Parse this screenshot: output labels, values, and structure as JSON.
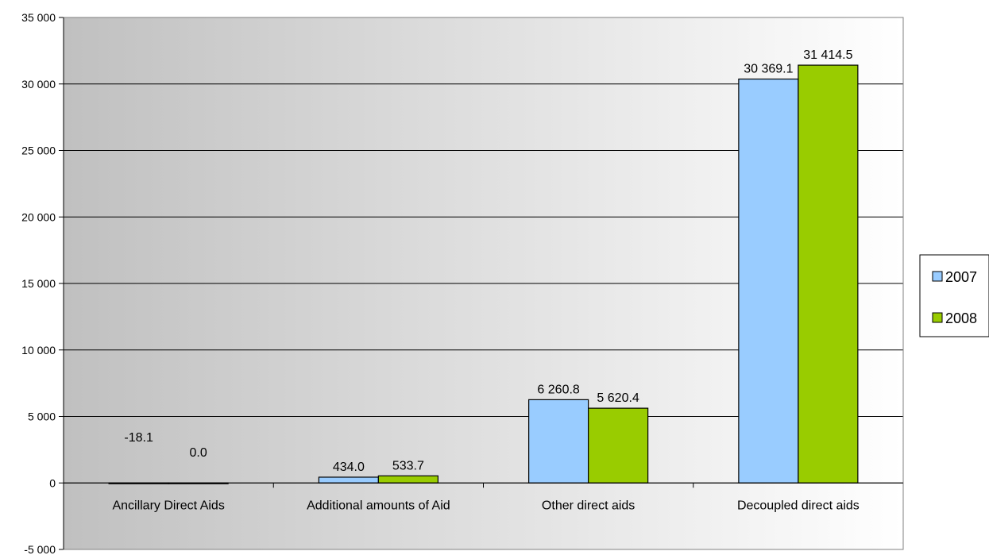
{
  "chart_data": {
    "type": "bar",
    "categories": [
      "Ancillary Direct Aids",
      "Additional amounts of Aid",
      "Other direct aids",
      "Decoupled direct aids"
    ],
    "series": [
      {
        "name": "2007",
        "values": [
          -18.1,
          434.0,
          6260.8,
          30369.1
        ],
        "labels": [
          "-18.1",
          "434.0",
          "6 260.8",
          "30 369.1"
        ]
      },
      {
        "name": "2008",
        "values": [
          0.0,
          533.7,
          5620.4,
          31414.5
        ],
        "labels": [
          "0.0",
          "533.7",
          "5 620.4",
          "31 414.5"
        ]
      }
    ],
    "ylim": [
      -5000,
      35000
    ],
    "yticks": [
      -5000,
      0,
      5000,
      10000,
      15000,
      20000,
      25000,
      30000,
      35000
    ],
    "ytick_labels": [
      "-5 000",
      "0",
      "5 000",
      "10 000",
      "15 000",
      "20 000",
      "25 000",
      "30 000",
      "35 000"
    ],
    "grid": true,
    "legend_position": "right",
    "colors": {
      "2007": "#99ccff",
      "2008": "#99cc00"
    },
    "title": "",
    "xlabel": "",
    "ylabel": ""
  }
}
